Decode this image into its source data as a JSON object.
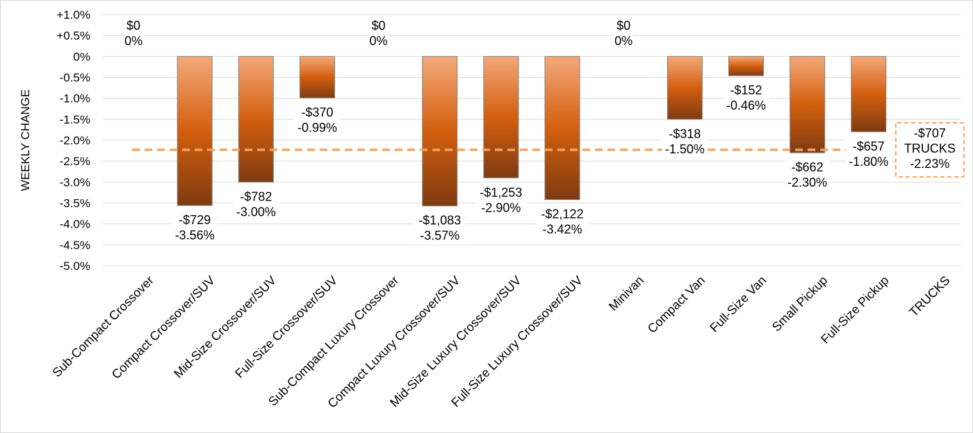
{
  "chart_data": {
    "type": "bar",
    "ylabel": "WEEKLY CHANGE",
    "xlabel": "",
    "title": "",
    "ylim": [
      -5.0,
      1.0
    ],
    "yticks": [
      "+1.0%",
      "+0.5%",
      "0%",
      "-0.5%",
      "-1.0%",
      "-1.5%",
      "-2.0%",
      "-2.5%",
      "-3.0%",
      "-3.5%",
      "-4.0%",
      "-4.5%",
      "-5.0%"
    ],
    "grid": true,
    "legend": "none",
    "categories": [
      "Sub-Compact Crossover",
      "Compact Crossover/SUV",
      "Mid-Size Crossover/SUV",
      "Full-Size Crossover/SUV",
      "Sub-Compact Luxury Crossover",
      "Compact Luxury Crossover/SUV",
      "Mid-Size Luxury Crossover/SUV",
      "Full-Size Luxury Crossover/SUV",
      "Minivan",
      "Compact Van",
      "Full-Size Van",
      "Small Pickup",
      "Full-Size Pickup",
      "TRUCKS"
    ],
    "values": [
      0,
      -3.56,
      -3.0,
      -0.99,
      0,
      -3.57,
      -2.9,
      -3.42,
      0,
      -1.5,
      -0.46,
      -2.3,
      -1.8,
      null
    ],
    "dollar_labels": [
      "$0",
      "-$729",
      "-$782",
      "-$370",
      "$0",
      "-$1,083",
      "-$1,253",
      "-$2,122",
      "$0",
      "-$318",
      "-$152",
      "-$662",
      "-$657",
      "-$707"
    ],
    "percent_labels": [
      "0%",
      "-3.56%",
      "-3.00%",
      "-0.99%",
      "0%",
      "-3.57%",
      "-2.90%",
      "-3.42%",
      "0%",
      "-1.50%",
      "-0.46%",
      "-2.30%",
      "-1.80%",
      "-2.23%"
    ],
    "reference_line": {
      "name": "TRUCKS",
      "value": -2.23,
      "dollar_label": "-$707",
      "percent_label": "-2.23%",
      "color": "#f4a460"
    },
    "bar_colors": {
      "top": "#f4a97a",
      "middle": "#d35f0f",
      "bottom": "#7f3b10",
      "outline": "#7f7f7f"
    }
  }
}
